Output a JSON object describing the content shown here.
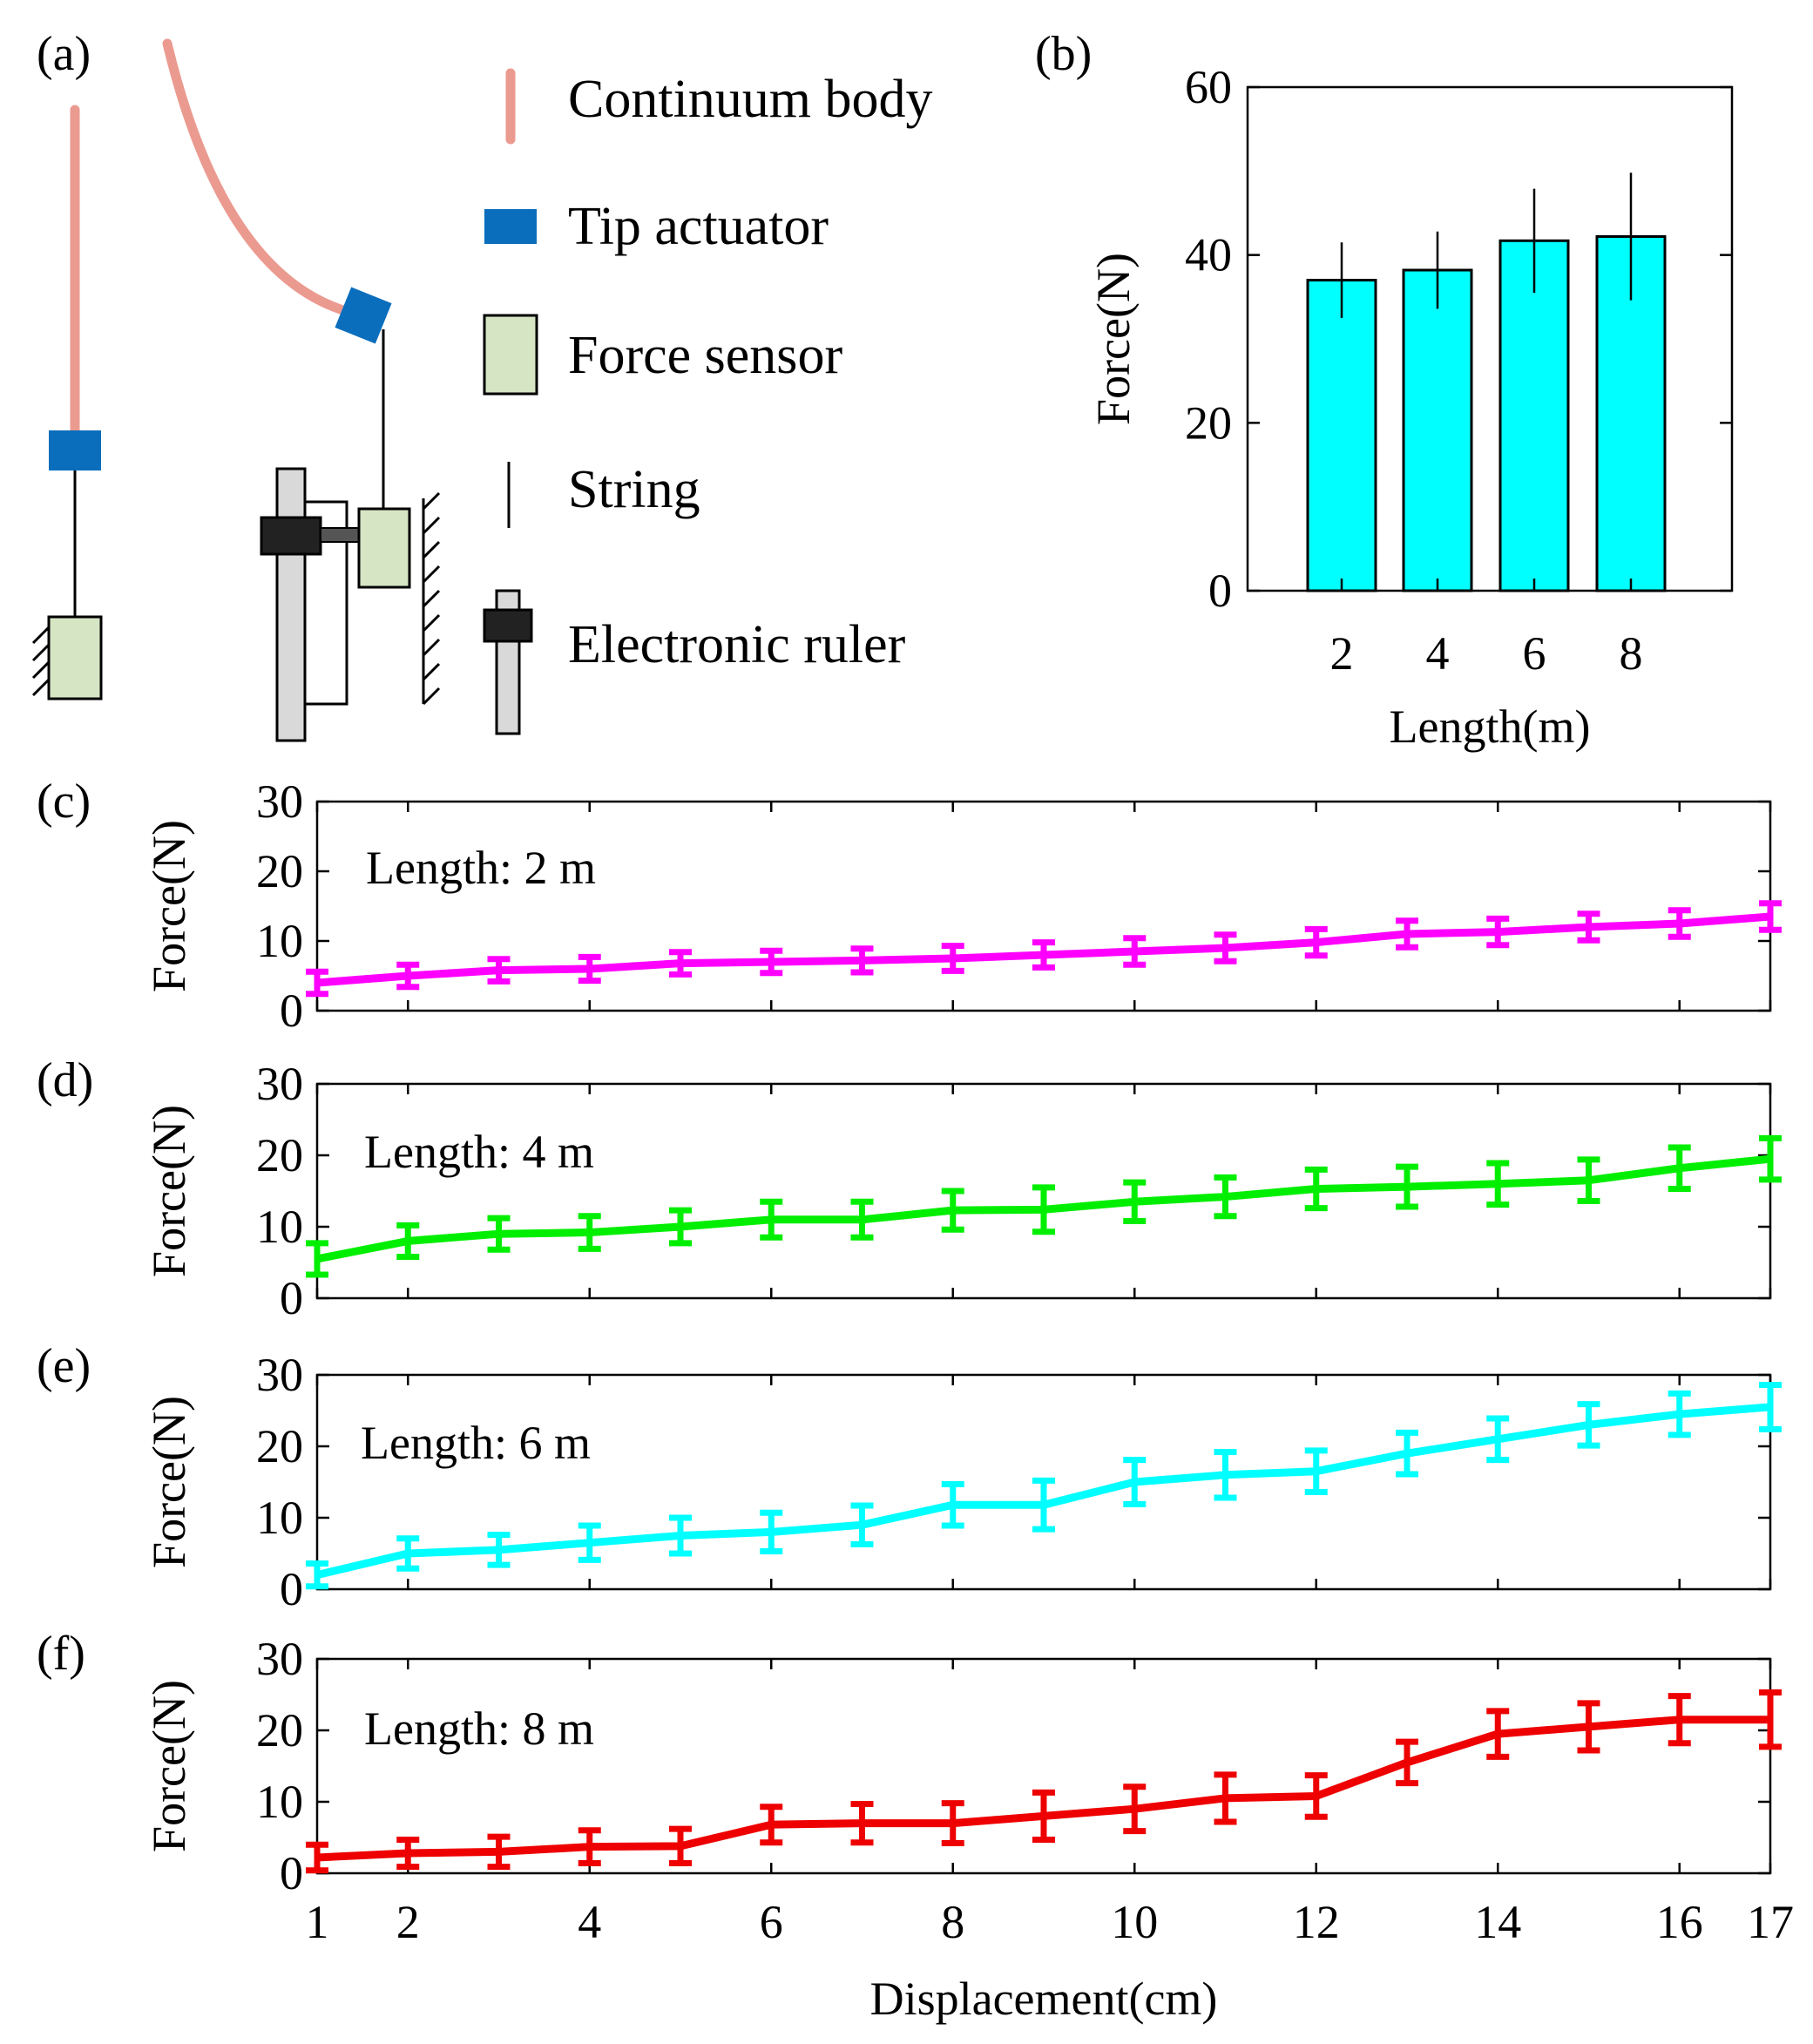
{
  "panel_labels": {
    "a": "(a)",
    "b": "(b)",
    "c": "(c)",
    "d": "(d)",
    "e": "(e)",
    "f": "(f)"
  },
  "legend": {
    "continuum_body": "Continuum body",
    "tip_actuator": "Tip actuator",
    "force_sensor": "Force sensor",
    "string": "String",
    "electronic_ruler": "Electronic ruler"
  },
  "colors": {
    "continuum_body": "#eb9a90",
    "tip_actuator": "#0a6ebd",
    "force_sensor": "#d6e5c4",
    "ruler_dark": "#222222",
    "ruler_light": "#d9d9d9",
    "bar_fill": "#00ffff",
    "magenta": "#ff00ff",
    "green": "#00ee00",
    "cyan": "#00ffff",
    "red": "#ee0000"
  },
  "chart_data": [
    {
      "id": "b",
      "type": "bar",
      "categories": [
        "2",
        "4",
        "6",
        "8"
      ],
      "values": [
        37,
        38.2,
        41.7,
        42.2
      ],
      "errors": [
        4.5,
        4.6,
        6.2,
        7.6
      ],
      "xlabel": "Length(m)",
      "ylabel": "Force(N)",
      "ylim": [
        0,
        60
      ],
      "yticks": [
        "0",
        "20",
        "40",
        "60"
      ]
    },
    {
      "id": "c",
      "type": "line",
      "annotation": "Length: 2 m",
      "color_key": "magenta",
      "x": [
        1,
        2,
        3,
        4,
        5,
        6,
        7,
        8,
        9,
        10,
        11,
        12,
        13,
        14,
        15,
        16,
        17
      ],
      "values": [
        4,
        5,
        5.8,
        6,
        6.8,
        7,
        7.2,
        7.5,
        8,
        8.5,
        9,
        9.8,
        11,
        11.3,
        12,
        12.5,
        13.5
      ],
      "errors": [
        1.6,
        1.6,
        1.6,
        1.7,
        1.6,
        1.6,
        1.7,
        1.8,
        1.8,
        1.9,
        1.9,
        1.9,
        1.9,
        1.9,
        1.9,
        1.9,
        1.9
      ],
      "ylabel": "Force(N)",
      "ylim": [
        0,
        30
      ],
      "yticks": [
        "0",
        "10",
        "20",
        "30"
      ]
    },
    {
      "id": "d",
      "type": "line",
      "annotation": "Length: 4 m",
      "color_key": "green",
      "x": [
        1,
        2,
        3,
        4,
        5,
        6,
        7,
        8,
        9,
        10,
        11,
        12,
        13,
        14,
        15,
        16,
        17
      ],
      "values": [
        5.5,
        8,
        9,
        9.2,
        10,
        11,
        11,
        12.3,
        12.4,
        13.5,
        14.2,
        15.3,
        15.6,
        16,
        16.5,
        18.2,
        19.5
      ],
      "errors": [
        2.2,
        2.2,
        2.2,
        2.3,
        2.3,
        2.5,
        2.5,
        2.7,
        3.1,
        2.7,
        2.7,
        2.7,
        2.8,
        2.9,
        2.9,
        2.9,
        2.9
      ],
      "ylabel": "Force(N)",
      "ylim": [
        0,
        30
      ],
      "yticks": [
        "0",
        "10",
        "20",
        "30"
      ]
    },
    {
      "id": "e",
      "type": "line",
      "annotation": "Length: 6 m",
      "color_key": "cyan",
      "x": [
        1,
        2,
        3,
        4,
        5,
        6,
        7,
        8,
        9,
        10,
        11,
        12,
        13,
        14,
        15,
        16,
        17
      ],
      "values": [
        2,
        5,
        5.5,
        6.5,
        7.5,
        8,
        9,
        11.8,
        11.8,
        15,
        16,
        16.5,
        19,
        21,
        23,
        24.5,
        25.5
      ],
      "errors": [
        1.6,
        2.1,
        2.1,
        2.4,
        2.5,
        2.7,
        2.7,
        2.9,
        3.4,
        3.1,
        3.2,
        2.9,
        2.9,
        2.9,
        2.9,
        2.9,
        3.1
      ],
      "ylabel": "Force(N)",
      "ylim": [
        0,
        30
      ],
      "yticks": [
        "0",
        "10",
        "20",
        "30"
      ]
    },
    {
      "id": "f",
      "type": "line",
      "annotation": "Length: 8 m",
      "color_key": "red",
      "x": [
        1,
        2,
        3,
        4,
        5,
        6,
        7,
        8,
        9,
        10,
        11,
        12,
        13,
        14,
        15,
        16,
        17
      ],
      "values": [
        2.2,
        2.8,
        3,
        3.7,
        3.8,
        6.8,
        7,
        7,
        8,
        9,
        10.5,
        10.8,
        15.5,
        19.5,
        20.5,
        21.5,
        21.5
      ],
      "errors": [
        1.8,
        1.9,
        2.1,
        2.3,
        2.4,
        2.5,
        2.7,
        2.8,
        3.3,
        3.1,
        3.3,
        2.9,
        2.9,
        3.2,
        3.3,
        3.3,
        3.8
      ],
      "ylabel": "Force(N)",
      "xlabel": "Displacement(cm)",
      "ylim": [
        0,
        30
      ],
      "yticks": [
        "0",
        "10",
        "20",
        "30"
      ],
      "xticks": [
        "1",
        "2",
        "4",
        "6",
        "8",
        "10",
        "12",
        "14",
        "16",
        "17"
      ]
    }
  ]
}
